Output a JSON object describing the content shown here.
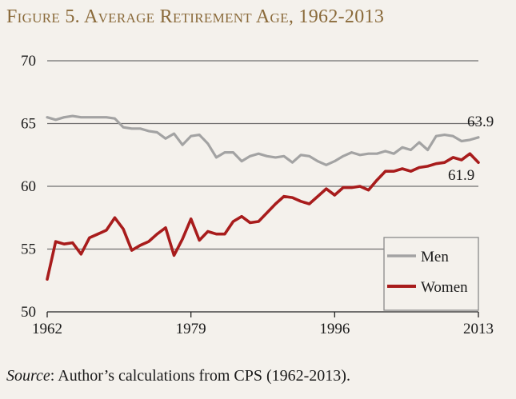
{
  "title": "Figure 5. Average Retirement Age, 1962-2013",
  "source": {
    "label": "Source",
    "text": ": Author’s calculations from CPS (1962-2013)."
  },
  "colors": {
    "men": "#a3a3a3",
    "women": "#a81c1c",
    "grid": "#6f6f6f",
    "axis": "#222222"
  },
  "chart_data": {
    "type": "line",
    "xlim": [
      1962,
      2013
    ],
    "ylim": [
      50,
      70
    ],
    "x_ticks": [
      1962,
      1979,
      1996,
      2013
    ],
    "x_tick_labels": [
      "1962",
      "1979",
      "1996",
      "2013"
    ],
    "y_ticks": [
      50,
      55,
      60,
      65,
      70
    ],
    "y_tick_labels": [
      "50",
      "55",
      "60",
      "65",
      "70"
    ],
    "grid": "horizontal",
    "legend_position": "bottom-right",
    "x": [
      1962,
      1963,
      1964,
      1965,
      1966,
      1967,
      1968,
      1969,
      1970,
      1971,
      1972,
      1973,
      1974,
      1975,
      1976,
      1977,
      1978,
      1979,
      1980,
      1981,
      1982,
      1983,
      1984,
      1985,
      1986,
      1987,
      1988,
      1989,
      1990,
      1991,
      1992,
      1993,
      1994,
      1995,
      1996,
      1997,
      1998,
      1999,
      2000,
      2001,
      2002,
      2003,
      2004,
      2005,
      2006,
      2007,
      2008,
      2009,
      2010,
      2011,
      2012,
      2013
    ],
    "series": [
      {
        "name": "Men",
        "values": [
          65.5,
          65.3,
          65.5,
          65.6,
          65.5,
          65.5,
          65.5,
          65.5,
          65.4,
          64.7,
          64.6,
          64.6,
          64.4,
          64.3,
          63.8,
          64.2,
          63.3,
          64.0,
          64.1,
          63.4,
          62.3,
          62.7,
          62.7,
          62.0,
          62.4,
          62.6,
          62.4,
          62.3,
          62.4,
          61.9,
          62.5,
          62.4,
          62.0,
          61.7,
          62.0,
          62.4,
          62.7,
          62.5,
          62.6,
          62.6,
          62.8,
          62.6,
          63.1,
          62.9,
          63.5,
          62.9,
          64.0,
          64.1,
          64.0,
          63.6,
          63.7,
          63.9
        ],
        "end_label": "63.9"
      },
      {
        "name": "Women",
        "values": [
          52.6,
          55.6,
          55.4,
          55.5,
          54.6,
          55.9,
          56.2,
          56.5,
          57.5,
          56.6,
          54.9,
          55.3,
          55.6,
          56.2,
          56.7,
          54.5,
          55.8,
          57.4,
          55.7,
          56.4,
          56.2,
          56.2,
          57.2,
          57.6,
          57.1,
          57.2,
          57.9,
          58.6,
          59.2,
          59.1,
          58.8,
          58.6,
          59.2,
          59.8,
          59.3,
          59.9,
          59.9,
          60.0,
          59.7,
          60.5,
          61.2,
          61.2,
          61.4,
          61.2,
          61.5,
          61.6,
          61.8,
          61.9,
          62.3,
          62.1,
          62.6,
          61.9
        ],
        "end_label": "61.9"
      }
    ]
  }
}
